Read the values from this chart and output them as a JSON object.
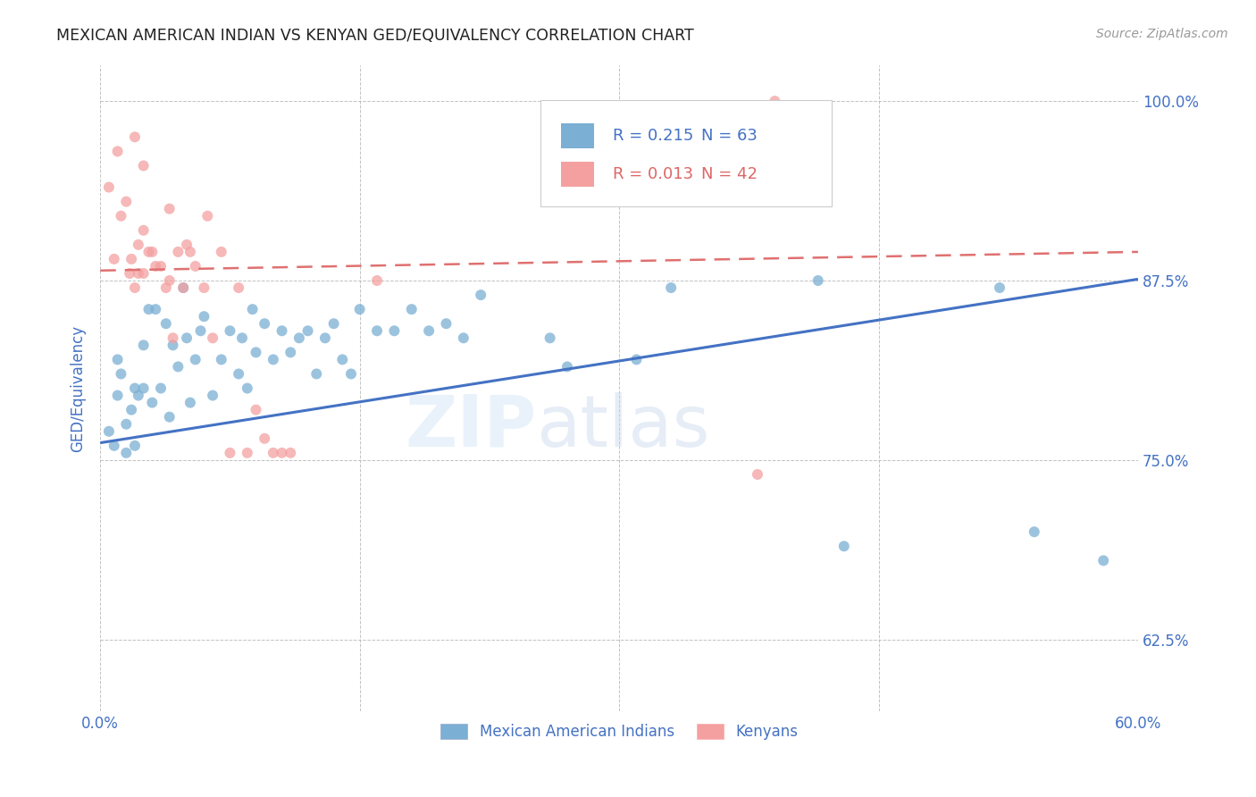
{
  "title": "MEXICAN AMERICAN INDIAN VS KENYAN GED/EQUIVALENCY CORRELATION CHART",
  "source": "Source: ZipAtlas.com",
  "ylabel": "GED/Equivalency",
  "xlim": [
    0.0,
    0.6
  ],
  "ylim": [
    0.575,
    1.025
  ],
  "yticks": [
    0.625,
    0.75,
    0.875,
    1.0
  ],
  "ytick_labels": [
    "62.5%",
    "75.0%",
    "87.5%",
    "100.0%"
  ],
  "xticks": [
    0.0,
    0.15,
    0.3,
    0.45,
    0.6
  ],
  "xtick_labels": [
    "0.0%",
    "",
    "",
    "",
    "60.0%"
  ],
  "blue_R": 0.215,
  "blue_N": 63,
  "pink_R": 0.013,
  "pink_N": 42,
  "blue_color": "#7BAFD4",
  "pink_color": "#F4A0A0",
  "blue_line_color": "#4472C4",
  "pink_line_color": "#E07070",
  "axis_color": "#4472C4",
  "grid_color": "#BBBBBB",
  "blue_scatter_x": [
    0.005,
    0.008,
    0.01,
    0.01,
    0.012,
    0.015,
    0.015,
    0.018,
    0.02,
    0.02,
    0.022,
    0.025,
    0.025,
    0.028,
    0.03,
    0.032,
    0.035,
    0.038,
    0.04,
    0.042,
    0.045,
    0.048,
    0.05,
    0.052,
    0.055,
    0.058,
    0.06,
    0.065,
    0.07,
    0.075,
    0.08,
    0.082,
    0.085,
    0.088,
    0.09,
    0.095,
    0.1,
    0.105,
    0.11,
    0.115,
    0.12,
    0.125,
    0.13,
    0.135,
    0.14,
    0.145,
    0.15,
    0.16,
    0.17,
    0.18,
    0.19,
    0.2,
    0.21,
    0.22,
    0.26,
    0.27,
    0.31,
    0.33,
    0.415,
    0.43,
    0.52,
    0.54,
    0.58
  ],
  "blue_scatter_y": [
    0.77,
    0.76,
    0.82,
    0.795,
    0.81,
    0.775,
    0.755,
    0.785,
    0.8,
    0.76,
    0.795,
    0.83,
    0.8,
    0.855,
    0.79,
    0.855,
    0.8,
    0.845,
    0.78,
    0.83,
    0.815,
    0.87,
    0.835,
    0.79,
    0.82,
    0.84,
    0.85,
    0.795,
    0.82,
    0.84,
    0.81,
    0.835,
    0.8,
    0.855,
    0.825,
    0.845,
    0.82,
    0.84,
    0.825,
    0.835,
    0.84,
    0.81,
    0.835,
    0.845,
    0.82,
    0.81,
    0.855,
    0.84,
    0.84,
    0.855,
    0.84,
    0.845,
    0.835,
    0.865,
    0.835,
    0.815,
    0.82,
    0.87,
    0.875,
    0.69,
    0.87,
    0.7,
    0.68
  ],
  "pink_scatter_x": [
    0.005,
    0.008,
    0.01,
    0.012,
    0.015,
    0.017,
    0.018,
    0.02,
    0.02,
    0.022,
    0.022,
    0.025,
    0.025,
    0.025,
    0.028,
    0.03,
    0.032,
    0.035,
    0.038,
    0.04,
    0.04,
    0.042,
    0.045,
    0.048,
    0.05,
    0.052,
    0.055,
    0.06,
    0.062,
    0.065,
    0.07,
    0.075,
    0.08,
    0.085,
    0.09,
    0.095,
    0.1,
    0.105,
    0.11,
    0.16,
    0.38,
    0.39
  ],
  "pink_scatter_y": [
    0.94,
    0.89,
    0.965,
    0.92,
    0.93,
    0.88,
    0.89,
    0.975,
    0.87,
    0.9,
    0.88,
    0.955,
    0.91,
    0.88,
    0.895,
    0.895,
    0.885,
    0.885,
    0.87,
    0.925,
    0.875,
    0.835,
    0.895,
    0.87,
    0.9,
    0.895,
    0.885,
    0.87,
    0.92,
    0.835,
    0.895,
    0.755,
    0.87,
    0.755,
    0.785,
    0.765,
    0.755,
    0.755,
    0.755,
    0.875,
    0.74,
    1.0
  ],
  "blue_trend_x": [
    0.0,
    0.6
  ],
  "blue_trend_y": [
    0.762,
    0.876
  ],
  "pink_trend_x": [
    0.0,
    0.6
  ],
  "pink_trend_y": [
    0.882,
    0.895
  ]
}
